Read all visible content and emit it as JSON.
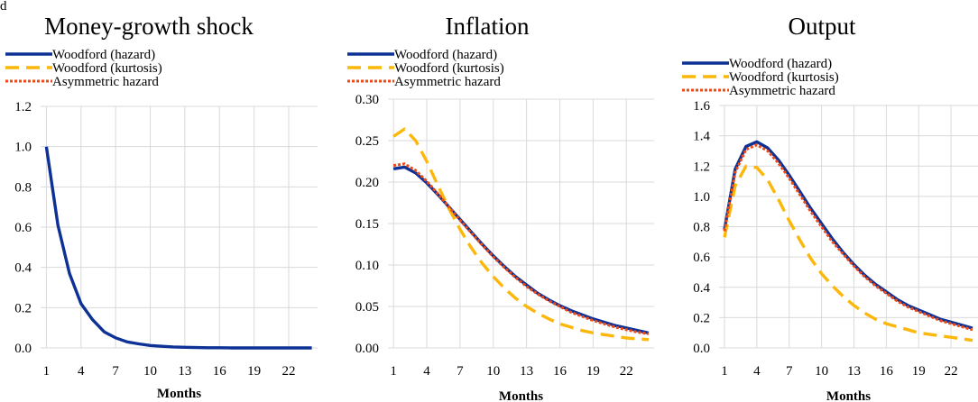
{
  "corner_label": "d",
  "legend_labels": [
    "Woodford (hazard)",
    "Woodford (kurtosis)",
    "Asymmetric hazard"
  ],
  "series_colors": [
    "#0d3194",
    "#fbb70a",
    "#ee4a17"
  ],
  "chart_data": [
    {
      "type": "line",
      "title": "Money-growth shock",
      "xlabel": "Months",
      "ylabel": "",
      "x": [
        1,
        2,
        3,
        4,
        5,
        6,
        7,
        8,
        9,
        10,
        11,
        12,
        13,
        14,
        15,
        16,
        17,
        18,
        19,
        20,
        21,
        22,
        23,
        24
      ],
      "xticks": [
        1,
        4,
        7,
        10,
        13,
        16,
        19,
        22
      ],
      "ylim": [
        0,
        1.2
      ],
      "yticks": [
        "0.0",
        "0.2",
        "0.4",
        "0.6",
        "0.8",
        "1.0",
        "1.2"
      ],
      "legend": "top-left",
      "grid": true,
      "series": [
        {
          "name": "Woodford (hazard)",
          "values": [
            1.0,
            0.61,
            0.37,
            0.22,
            0.14,
            0.08,
            0.05,
            0.03,
            0.02,
            0.012,
            0.008,
            0.005,
            0.003,
            0.002,
            0.001,
            0.001,
            0.0,
            0.0,
            0.0,
            0.0,
            0.0,
            0.0,
            0.0,
            0.0
          ]
        }
      ]
    },
    {
      "type": "line",
      "title": "Inflation",
      "xlabel": "Months",
      "ylabel": "",
      "x": [
        1,
        2,
        3,
        4,
        5,
        6,
        7,
        8,
        9,
        10,
        11,
        12,
        13,
        14,
        15,
        16,
        17,
        18,
        19,
        20,
        21,
        22,
        23,
        24
      ],
      "xticks": [
        1,
        4,
        7,
        10,
        13,
        16,
        19,
        22
      ],
      "ylim": [
        0,
        0.3
      ],
      "yticks": [
        "0.00",
        "0.05",
        "0.10",
        "0.15",
        "0.20",
        "0.25",
        "0.30"
      ],
      "legend": "top-left",
      "grid": true,
      "series": [
        {
          "name": "Woodford (hazard)",
          "values": [
            0.216,
            0.218,
            0.211,
            0.199,
            0.185,
            0.17,
            0.155,
            0.14,
            0.125,
            0.111,
            0.098,
            0.086,
            0.076,
            0.066,
            0.058,
            0.051,
            0.045,
            0.04,
            0.035,
            0.031,
            0.027,
            0.024,
            0.021,
            0.018
          ]
        },
        {
          "name": "Woodford (kurtosis)",
          "values": [
            0.255,
            0.264,
            0.25,
            0.225,
            0.196,
            0.168,
            0.143,
            0.121,
            0.102,
            0.086,
            0.072,
            0.06,
            0.05,
            0.042,
            0.035,
            0.029,
            0.025,
            0.021,
            0.018,
            0.016,
            0.014,
            0.012,
            0.011,
            0.01
          ]
        },
        {
          "name": "Asymmetric hazard",
          "values": [
            0.22,
            0.222,
            0.214,
            0.201,
            0.186,
            0.17,
            0.154,
            0.139,
            0.124,
            0.11,
            0.097,
            0.085,
            0.074,
            0.065,
            0.057,
            0.05,
            0.043,
            0.038,
            0.033,
            0.029,
            0.025,
            0.022,
            0.019,
            0.017
          ]
        }
      ]
    },
    {
      "type": "line",
      "title": "Output",
      "xlabel": "Months",
      "ylabel": "",
      "x": [
        1,
        2,
        3,
        4,
        5,
        6,
        7,
        8,
        9,
        10,
        11,
        12,
        13,
        14,
        15,
        16,
        17,
        18,
        19,
        20,
        21,
        22,
        23,
        24
      ],
      "xticks": [
        1,
        4,
        7,
        10,
        13,
        16,
        19,
        22
      ],
      "ylim": [
        0,
        1.6
      ],
      "yticks": [
        "0.0",
        "0.2",
        "0.4",
        "0.6",
        "0.8",
        "1.0",
        "1.2",
        "1.4",
        "1.6"
      ],
      "legend": "top-left",
      "grid": true,
      "series": [
        {
          "name": "Woodford (hazard)",
          "values": [
            0.78,
            1.18,
            1.33,
            1.36,
            1.32,
            1.24,
            1.14,
            1.03,
            0.92,
            0.82,
            0.72,
            0.63,
            0.55,
            0.48,
            0.42,
            0.37,
            0.32,
            0.28,
            0.25,
            0.22,
            0.19,
            0.17,
            0.15,
            0.13
          ]
        },
        {
          "name": "Woodford (kurtosis)",
          "values": [
            0.73,
            1.07,
            1.2,
            1.19,
            1.11,
            0.98,
            0.84,
            0.71,
            0.59,
            0.49,
            0.41,
            0.34,
            0.28,
            0.23,
            0.19,
            0.16,
            0.14,
            0.12,
            0.1,
            0.09,
            0.08,
            0.07,
            0.06,
            0.05
          ]
        },
        {
          "name": "Asymmetric hazard",
          "values": [
            0.77,
            1.16,
            1.31,
            1.34,
            1.3,
            1.22,
            1.12,
            1.01,
            0.9,
            0.8,
            0.7,
            0.62,
            0.54,
            0.47,
            0.41,
            0.36,
            0.31,
            0.27,
            0.24,
            0.21,
            0.18,
            0.16,
            0.14,
            0.12
          ]
        }
      ]
    }
  ]
}
